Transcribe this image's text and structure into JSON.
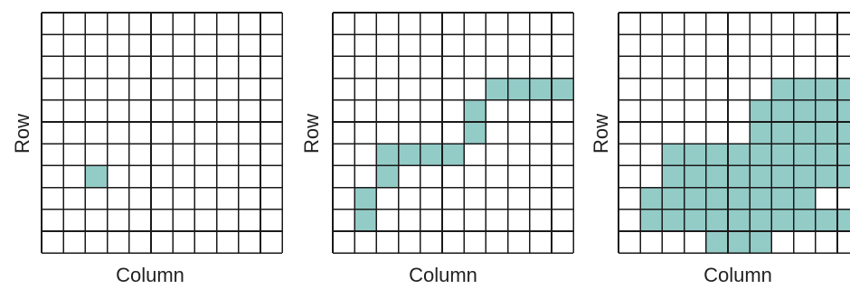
{
  "colors": {
    "fill": "#93cbc7",
    "grid": "#1a1a1a",
    "background": "#ffffff"
  },
  "grid_size": {
    "rows": 11,
    "cols": 11
  },
  "panels": [
    {
      "id": "panel-1",
      "x_label": "Column",
      "y_label": "Row",
      "filled_cells": [
        [
          7,
          2
        ]
      ]
    },
    {
      "id": "panel-2",
      "x_label": "Column",
      "y_label": "Row",
      "filled_cells": [
        [
          3,
          7
        ],
        [
          3,
          8
        ],
        [
          3,
          9
        ],
        [
          3,
          10
        ],
        [
          4,
          6
        ],
        [
          5,
          6
        ],
        [
          6,
          2
        ],
        [
          6,
          3
        ],
        [
          6,
          4
        ],
        [
          6,
          5
        ],
        [
          7,
          2
        ],
        [
          8,
          1
        ],
        [
          9,
          1
        ]
      ]
    },
    {
      "id": "panel-3",
      "x_label": "Column",
      "y_label": "Row",
      "filled_cells": [
        [
          3,
          7
        ],
        [
          3,
          8
        ],
        [
          3,
          9
        ],
        [
          3,
          10
        ],
        [
          4,
          6
        ],
        [
          4,
          7
        ],
        [
          4,
          8
        ],
        [
          4,
          9
        ],
        [
          4,
          10
        ],
        [
          5,
          6
        ],
        [
          5,
          7
        ],
        [
          5,
          8
        ],
        [
          5,
          9
        ],
        [
          5,
          10
        ],
        [
          6,
          2
        ],
        [
          6,
          3
        ],
        [
          6,
          4
        ],
        [
          6,
          5
        ],
        [
          6,
          6
        ],
        [
          6,
          7
        ],
        [
          6,
          8
        ],
        [
          6,
          9
        ],
        [
          6,
          10
        ],
        [
          7,
          2
        ],
        [
          7,
          3
        ],
        [
          7,
          4
        ],
        [
          7,
          5
        ],
        [
          7,
          6
        ],
        [
          7,
          7
        ],
        [
          7,
          8
        ],
        [
          7,
          9
        ],
        [
          7,
          10
        ],
        [
          8,
          1
        ],
        [
          8,
          2
        ],
        [
          8,
          3
        ],
        [
          8,
          4
        ],
        [
          8,
          5
        ],
        [
          8,
          6
        ],
        [
          8,
          7
        ],
        [
          8,
          8
        ],
        [
          9,
          1
        ],
        [
          9,
          2
        ],
        [
          9,
          3
        ],
        [
          9,
          4
        ],
        [
          9,
          5
        ],
        [
          9,
          6
        ],
        [
          9,
          7
        ],
        [
          9,
          8
        ],
        [
          9,
          9
        ],
        [
          9,
          10
        ],
        [
          10,
          4
        ],
        [
          10,
          5
        ],
        [
          10,
          6
        ]
      ]
    }
  ]
}
